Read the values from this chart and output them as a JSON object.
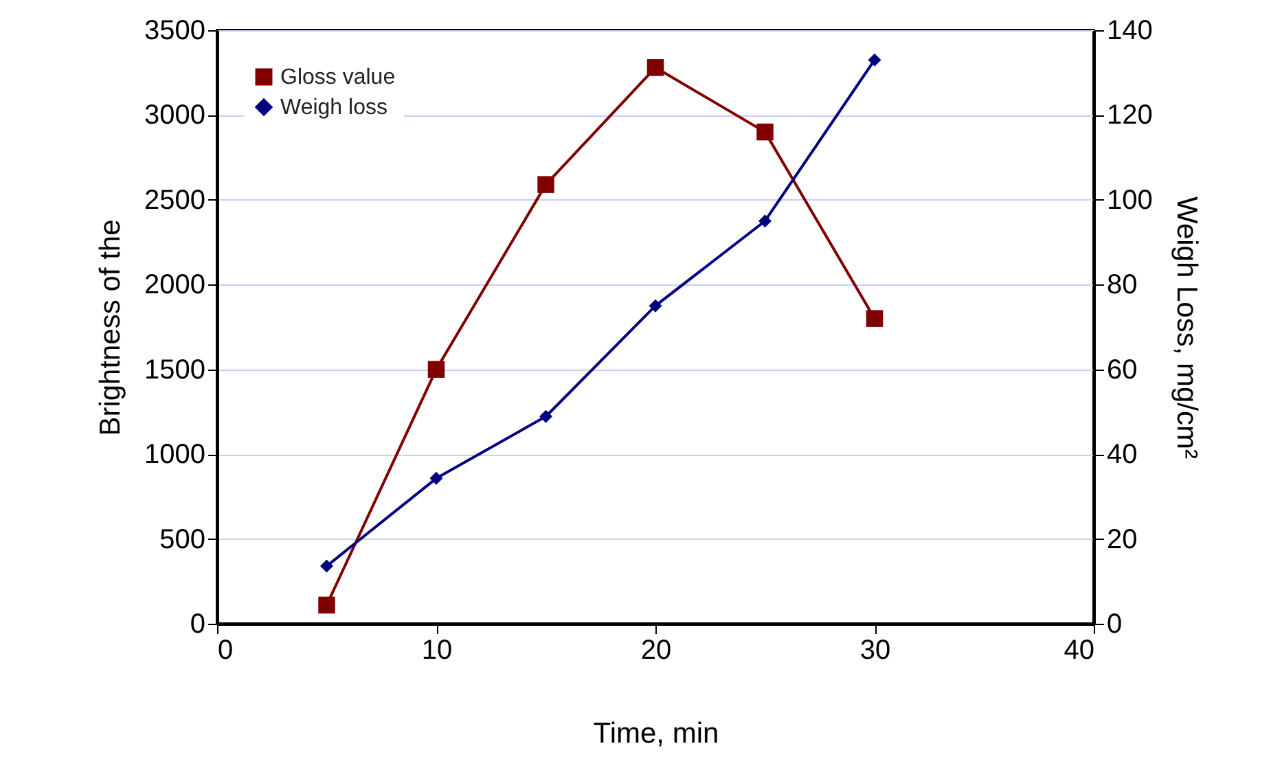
{
  "chart_data": {
    "type": "line",
    "xlabel": "Time, min",
    "ylabel": "Brightness of the",
    "y2label": "Weigh Loss, mg/cm²",
    "x": [
      5,
      10,
      15,
      20,
      25,
      30
    ],
    "series": [
      {
        "name": "Gloss value",
        "color": "#800000",
        "marker": "square",
        "values": [
          110,
          1500,
          2590,
          3280,
          2900,
          1800
        ]
      },
      {
        "name": "Weigh loss",
        "color": "#000080",
        "marker": "diamond",
        "axis": "y2",
        "values": [
          13.6,
          34.3,
          48.9,
          75,
          95,
          133
        ]
      }
    ],
    "xlim": [
      0,
      40
    ],
    "xticks": [
      0,
      10,
      20,
      30,
      40
    ],
    "ylim": [
      0,
      3500
    ],
    "yticks": [
      0,
      500,
      1000,
      1500,
      2000,
      2500,
      3000,
      3500
    ],
    "y2lim": [
      0,
      140
    ],
    "y2ticks": [
      0,
      20,
      40,
      60,
      80,
      100,
      120,
      140
    ],
    "grid": "y",
    "legend": "top left",
    "line_style": "solid"
  }
}
